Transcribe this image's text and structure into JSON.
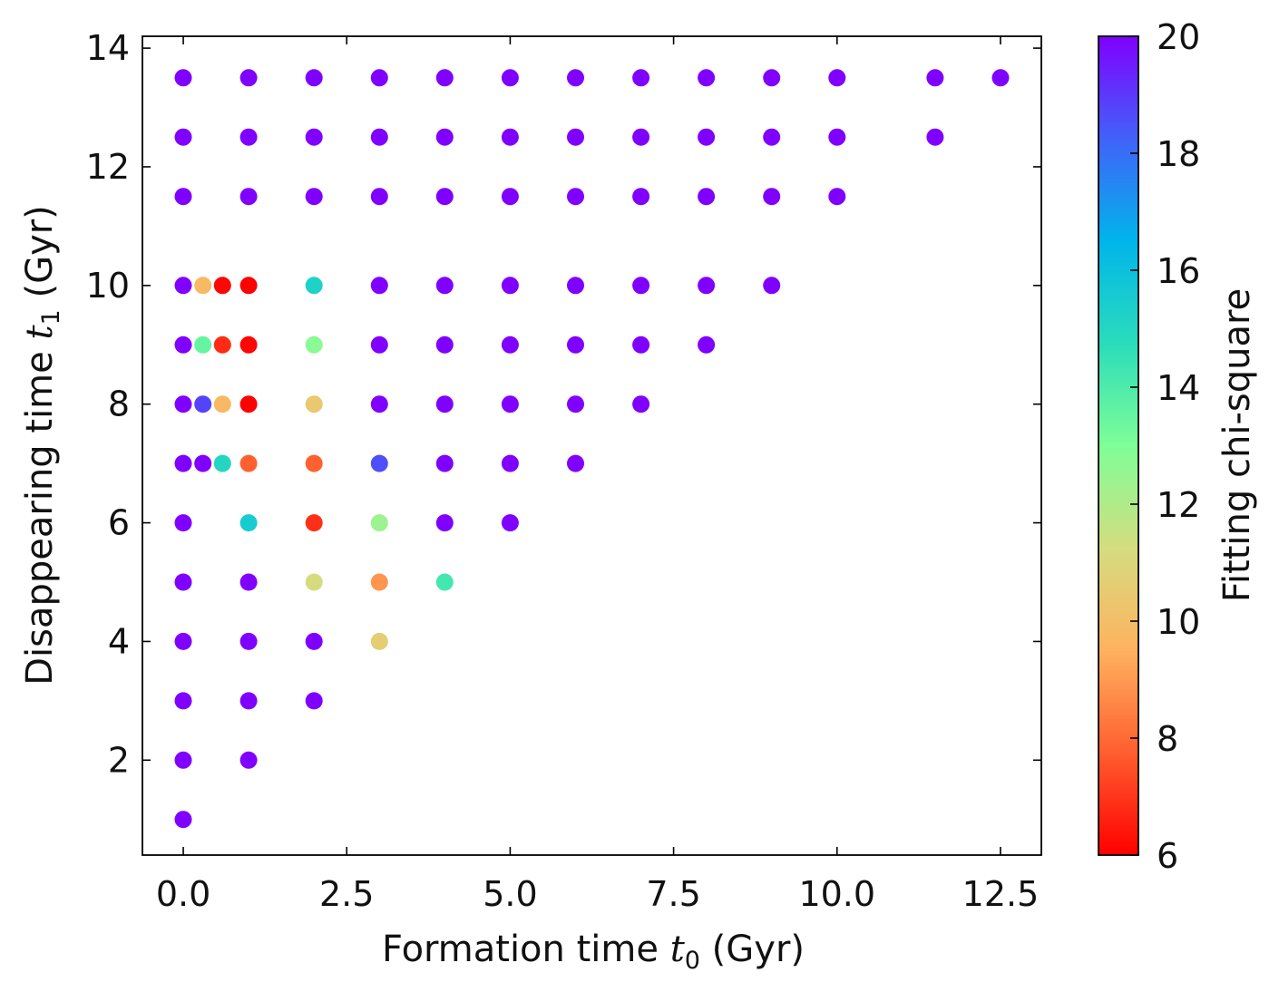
{
  "chart_data": {
    "type": "scatter",
    "title": "",
    "xlabel": {
      "prefix": "Formation time ",
      "var": "t",
      "sub": "0",
      "suffix": " (Gyr)"
    },
    "ylabel": {
      "prefix": "Disappearing time ",
      "var": "t",
      "sub": "1",
      "suffix": " (Gyr)"
    },
    "xlim": [
      -0.625,
      13.125
    ],
    "ylim": [
      0.4,
      14.2
    ],
    "xticks": [
      0.0,
      2.5,
      5.0,
      7.5,
      10.0,
      12.5
    ],
    "xtick_labels": [
      "0.0",
      "2.5",
      "5.0",
      "7.5",
      "10.0",
      "12.5"
    ],
    "yticks": [
      2,
      4,
      6,
      8,
      10,
      12,
      14
    ],
    "ytick_labels": [
      "2",
      "4",
      "6",
      "8",
      "10",
      "12",
      "14"
    ],
    "colorbar": {
      "label": "Fitting chi-square",
      "min": 6,
      "max": 20,
      "colormap": "rainbow_r",
      "ticks": [
        6,
        8,
        10,
        12,
        14,
        16,
        18,
        20
      ],
      "tick_labels": [
        "6",
        "8",
        "10",
        "12",
        "14",
        "16",
        "18",
        "20"
      ]
    },
    "points": [
      {
        "x": 0,
        "y": 13.5,
        "c": 20
      },
      {
        "x": 1,
        "y": 13.5,
        "c": 20
      },
      {
        "x": 2,
        "y": 13.5,
        "c": 20
      },
      {
        "x": 3,
        "y": 13.5,
        "c": 20
      },
      {
        "x": 4,
        "y": 13.5,
        "c": 20
      },
      {
        "x": 5,
        "y": 13.5,
        "c": 20
      },
      {
        "x": 6,
        "y": 13.5,
        "c": 20
      },
      {
        "x": 7,
        "y": 13.5,
        "c": 20
      },
      {
        "x": 8,
        "y": 13.5,
        "c": 20
      },
      {
        "x": 9,
        "y": 13.5,
        "c": 20
      },
      {
        "x": 10,
        "y": 13.5,
        "c": 20
      },
      {
        "x": 11.5,
        "y": 13.5,
        "c": 20
      },
      {
        "x": 12.5,
        "y": 13.5,
        "c": 20
      },
      {
        "x": 0,
        "y": 12.5,
        "c": 20
      },
      {
        "x": 1,
        "y": 12.5,
        "c": 20
      },
      {
        "x": 2,
        "y": 12.5,
        "c": 20
      },
      {
        "x": 3,
        "y": 12.5,
        "c": 20
      },
      {
        "x": 4,
        "y": 12.5,
        "c": 20
      },
      {
        "x": 5,
        "y": 12.5,
        "c": 20
      },
      {
        "x": 6,
        "y": 12.5,
        "c": 20
      },
      {
        "x": 7,
        "y": 12.5,
        "c": 20
      },
      {
        "x": 8,
        "y": 12.5,
        "c": 20
      },
      {
        "x": 9,
        "y": 12.5,
        "c": 20
      },
      {
        "x": 10,
        "y": 12.5,
        "c": 20
      },
      {
        "x": 11.5,
        "y": 12.5,
        "c": 20
      },
      {
        "x": 0,
        "y": 11.5,
        "c": 20
      },
      {
        "x": 1,
        "y": 11.5,
        "c": 20
      },
      {
        "x": 2,
        "y": 11.5,
        "c": 20
      },
      {
        "x": 3,
        "y": 11.5,
        "c": 20
      },
      {
        "x": 4,
        "y": 11.5,
        "c": 20
      },
      {
        "x": 5,
        "y": 11.5,
        "c": 20
      },
      {
        "x": 6,
        "y": 11.5,
        "c": 20
      },
      {
        "x": 7,
        "y": 11.5,
        "c": 20
      },
      {
        "x": 8,
        "y": 11.5,
        "c": 20
      },
      {
        "x": 9,
        "y": 11.5,
        "c": 20
      },
      {
        "x": 10,
        "y": 11.5,
        "c": 20
      },
      {
        "x": 0,
        "y": 10,
        "c": 20
      },
      {
        "x": 0.3,
        "y": 10,
        "c": 9.8
      },
      {
        "x": 0.6,
        "y": 10,
        "c": 6.1
      },
      {
        "x": 1,
        "y": 10,
        "c": 6.0
      },
      {
        "x": 2,
        "y": 10,
        "c": 15.2
      },
      {
        "x": 3,
        "y": 10,
        "c": 20
      },
      {
        "x": 4,
        "y": 10,
        "c": 20
      },
      {
        "x": 5,
        "y": 10,
        "c": 20
      },
      {
        "x": 6,
        "y": 10,
        "c": 20
      },
      {
        "x": 7,
        "y": 10,
        "c": 20
      },
      {
        "x": 8,
        "y": 10,
        "c": 20
      },
      {
        "x": 9,
        "y": 10,
        "c": 20
      },
      {
        "x": 0,
        "y": 9,
        "c": 20
      },
      {
        "x": 0.3,
        "y": 9,
        "c": 13.5
      },
      {
        "x": 0.6,
        "y": 9,
        "c": 6.8
      },
      {
        "x": 1,
        "y": 9,
        "c": 6.1
      },
      {
        "x": 2,
        "y": 9,
        "c": 12.8
      },
      {
        "x": 3,
        "y": 9,
        "c": 20
      },
      {
        "x": 4,
        "y": 9,
        "c": 20
      },
      {
        "x": 5,
        "y": 9,
        "c": 20
      },
      {
        "x": 6,
        "y": 9,
        "c": 20
      },
      {
        "x": 7,
        "y": 9,
        "c": 20
      },
      {
        "x": 8,
        "y": 9,
        "c": 20
      },
      {
        "x": 0,
        "y": 8,
        "c": 20
      },
      {
        "x": 0.3,
        "y": 8,
        "c": 18.8
      },
      {
        "x": 0.6,
        "y": 8,
        "c": 9.8
      },
      {
        "x": 1,
        "y": 8,
        "c": 6.0
      },
      {
        "x": 2,
        "y": 8,
        "c": 10.4
      },
      {
        "x": 3,
        "y": 8,
        "c": 20
      },
      {
        "x": 4,
        "y": 8,
        "c": 20
      },
      {
        "x": 5,
        "y": 8,
        "c": 20
      },
      {
        "x": 6,
        "y": 8,
        "c": 20
      },
      {
        "x": 7,
        "y": 8,
        "c": 20
      },
      {
        "x": 0,
        "y": 7,
        "c": 20
      },
      {
        "x": 0.3,
        "y": 7,
        "c": 20
      },
      {
        "x": 0.6,
        "y": 7,
        "c": 15.0
      },
      {
        "x": 1,
        "y": 7,
        "c": 7.8
      },
      {
        "x": 2,
        "y": 7,
        "c": 7.8
      },
      {
        "x": 3,
        "y": 7,
        "c": 18.6
      },
      {
        "x": 4,
        "y": 7,
        "c": 20
      },
      {
        "x": 5,
        "y": 7,
        "c": 20
      },
      {
        "x": 6,
        "y": 7,
        "c": 20
      },
      {
        "x": 0,
        "y": 6,
        "c": 20
      },
      {
        "x": 1,
        "y": 6,
        "c": 15.5
      },
      {
        "x": 2,
        "y": 6,
        "c": 6.9
      },
      {
        "x": 3,
        "y": 6,
        "c": 12.4
      },
      {
        "x": 4,
        "y": 6,
        "c": 20
      },
      {
        "x": 5,
        "y": 6,
        "c": 20
      },
      {
        "x": 0,
        "y": 5,
        "c": 20
      },
      {
        "x": 1,
        "y": 5,
        "c": 20
      },
      {
        "x": 2,
        "y": 5,
        "c": 11.2
      },
      {
        "x": 3,
        "y": 5,
        "c": 8.9
      },
      {
        "x": 4,
        "y": 5,
        "c": 14.2
      },
      {
        "x": 0,
        "y": 4,
        "c": 20
      },
      {
        "x": 1,
        "y": 4,
        "c": 20
      },
      {
        "x": 2,
        "y": 4,
        "c": 20
      },
      {
        "x": 3,
        "y": 4,
        "c": 10.6
      },
      {
        "x": 0,
        "y": 3,
        "c": 20
      },
      {
        "x": 1,
        "y": 3,
        "c": 20
      },
      {
        "x": 2,
        "y": 3,
        "c": 20
      },
      {
        "x": 0,
        "y": 2,
        "c": 20
      },
      {
        "x": 1,
        "y": 2,
        "c": 20
      },
      {
        "x": 0,
        "y": 1,
        "c": 20
      }
    ]
  }
}
